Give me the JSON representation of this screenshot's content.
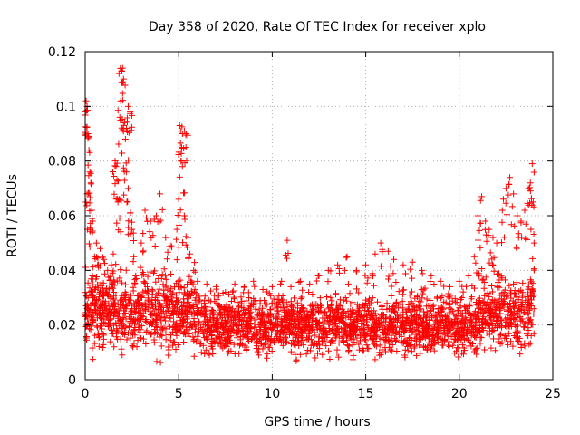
{
  "chart_data": {
    "type": "scatter",
    "title": "Day 358 of 2020, Rate Of TEC Index for receiver xplo",
    "xlabel": "GPS time / hours",
    "ylabel": "ROTI / TECUs",
    "xlim": [
      0,
      25
    ],
    "ylim": [
      0,
      0.12
    ],
    "xticks": [
      0,
      5,
      10,
      15,
      20,
      25
    ],
    "xtick_labels": [
      "0",
      "5",
      "10",
      "15",
      "20",
      "25"
    ],
    "yticks": [
      0,
      0.02,
      0.04,
      0.06,
      0.08,
      0.1,
      0.12
    ],
    "ytick_labels": [
      "0",
      "0.02",
      "0.04",
      "0.06",
      "0.08",
      "0.1",
      "0.12"
    ],
    "grid": true,
    "marker": "+",
    "color": "#ff0000",
    "data_x_range": [
      0,
      24
    ],
    "series": [
      {
        "name": "ROTI",
        "points": [
          [
            0.02,
            0.098
          ],
          [
            0.05,
            0.102
          ],
          [
            0.1,
            0.1
          ],
          [
            0.15,
            0.09
          ],
          [
            0.2,
            0.084
          ],
          [
            0.25,
            0.076
          ],
          [
            0.3,
            0.072
          ],
          [
            0.35,
            0.062
          ],
          [
            0.1,
            0.068
          ],
          [
            0.12,
            0.055
          ],
          [
            0.4,
            0.058
          ],
          [
            0.5,
            0.045
          ],
          [
            0.6,
            0.05
          ],
          [
            0.7,
            0.042
          ],
          [
            0.8,
            0.048
          ],
          [
            1.0,
            0.044
          ],
          [
            1.2,
            0.04
          ],
          [
            1.4,
            0.042
          ],
          [
            1.5,
            0.046
          ],
          [
            1.6,
            0.08
          ],
          [
            1.65,
            0.078
          ],
          [
            1.7,
            0.073
          ],
          [
            1.75,
            0.065
          ],
          [
            1.8,
            0.066
          ],
          [
            1.85,
            0.096
          ],
          [
            1.9,
            0.102
          ],
          [
            1.95,
            0.113
          ],
          [
            2.0,
            0.114
          ],
          [
            2.05,
            0.11
          ],
          [
            2.1,
            0.094
          ],
          [
            2.15,
            0.088
          ],
          [
            2.2,
            0.076
          ],
          [
            2.3,
            0.07
          ],
          [
            2.4,
            0.061
          ],
          [
            2.5,
            0.055
          ],
          [
            2.6,
            0.045
          ],
          [
            2.7,
            0.038
          ],
          [
            2.3,
            0.1
          ],
          [
            2.4,
            0.098
          ],
          [
            2.2,
            0.092
          ],
          [
            3.0,
            0.05
          ],
          [
            3.2,
            0.062
          ],
          [
            3.5,
            0.058
          ],
          [
            3.8,
            0.06
          ],
          [
            4.0,
            0.068
          ],
          [
            4.3,
            0.052
          ],
          [
            4.6,
            0.049
          ],
          [
            4.9,
            0.055
          ],
          [
            5.0,
            0.066
          ],
          [
            5.05,
            0.093
          ],
          [
            5.1,
            0.091
          ],
          [
            5.2,
            0.09
          ],
          [
            5.3,
            0.091
          ],
          [
            5.4,
            0.09
          ],
          [
            5.2,
            0.078
          ],
          [
            5.3,
            0.06
          ],
          [
            5.5,
            0.052
          ],
          [
            5.6,
            0.046
          ],
          [
            5.8,
            0.04
          ],
          [
            6.0,
            0.036
          ],
          [
            6.5,
            0.035
          ],
          [
            7.0,
            0.034
          ],
          [
            7.5,
            0.032
          ],
          [
            8.0,
            0.035
          ],
          [
            8.5,
            0.034
          ],
          [
            9.0,
            0.036
          ],
          [
            9.5,
            0.033
          ],
          [
            10.0,
            0.034
          ],
          [
            10.5,
            0.036
          ],
          [
            10.8,
            0.051
          ],
          [
            11.0,
            0.034
          ],
          [
            11.5,
            0.036
          ],
          [
            12.0,
            0.035
          ],
          [
            12.5,
            0.038
          ],
          [
            13.0,
            0.04
          ],
          [
            13.5,
            0.042
          ],
          [
            14.0,
            0.045
          ],
          [
            14.5,
            0.04
          ],
          [
            15.0,
            0.042
          ],
          [
            15.5,
            0.046
          ],
          [
            15.8,
            0.05
          ],
          [
            16.2,
            0.047
          ],
          [
            16.5,
            0.044
          ],
          [
            17.0,
            0.042
          ],
          [
            17.5,
            0.043
          ],
          [
            18.0,
            0.04
          ],
          [
            18.5,
            0.038
          ],
          [
            19.0,
            0.036
          ],
          [
            19.5,
            0.034
          ],
          [
            20.0,
            0.036
          ],
          [
            20.5,
            0.038
          ],
          [
            20.8,
            0.045
          ],
          [
            21.0,
            0.06
          ],
          [
            21.2,
            0.067
          ],
          [
            21.4,
            0.058
          ],
          [
            21.6,
            0.055
          ],
          [
            21.8,
            0.052
          ],
          [
            22.0,
            0.05
          ],
          [
            22.3,
            0.062
          ],
          [
            22.5,
            0.07
          ],
          [
            22.7,
            0.074
          ],
          [
            22.9,
            0.068
          ],
          [
            23.1,
            0.06
          ],
          [
            23.3,
            0.058
          ],
          [
            23.5,
            0.062
          ],
          [
            23.7,
            0.07
          ],
          [
            23.8,
            0.072
          ],
          [
            23.9,
            0.079
          ],
          [
            23.95,
            0.065
          ],
          [
            24.0,
            0.05
          ]
        ],
        "bulk_band": {
          "x_range": [
            0,
            24
          ],
          "y_min_typical": 0.005,
          "y_max_typical": 0.035,
          "y_center": 0.018
        }
      }
    ]
  }
}
